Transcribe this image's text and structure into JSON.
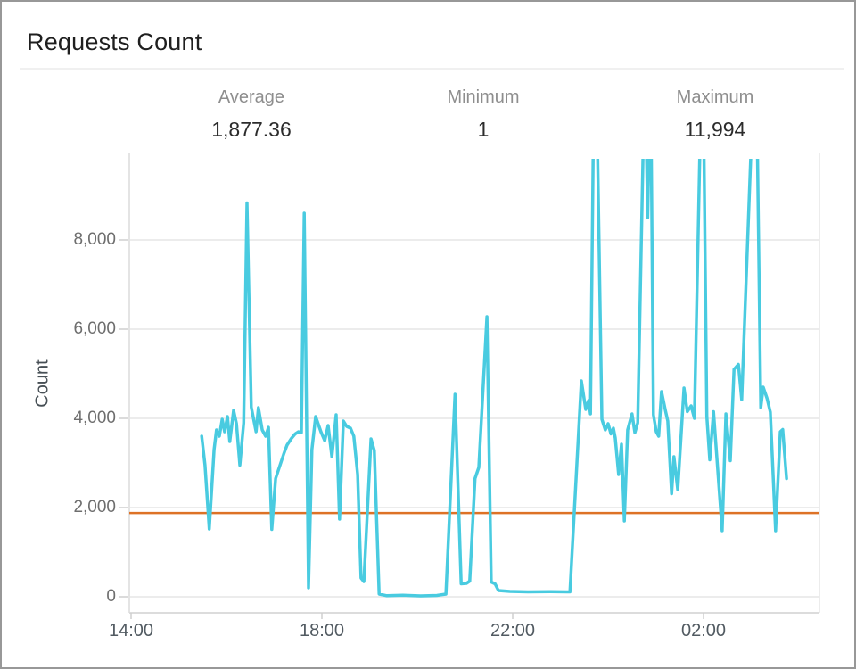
{
  "widget": {
    "title": "Requests Count"
  },
  "stats": [
    {
      "label": "Average",
      "value": "1,877.36"
    },
    {
      "label": "Minimum",
      "value": "1"
    },
    {
      "label": "Maximum",
      "value": "11,994"
    }
  ],
  "chart_data": {
    "type": "line",
    "title": "Requests Count",
    "xlabel": "",
    "ylabel": "Count",
    "x_unit": "hours after 14:00",
    "x_range": [
      0,
      14.4
    ],
    "ylim": [
      0,
      9900
    ],
    "grid": true,
    "legend": "none",
    "x_ticks": [
      {
        "t": 0,
        "label": "14:00"
      },
      {
        "t": 4,
        "label": "18:00"
      },
      {
        "t": 8,
        "label": "22:00"
      },
      {
        "t": 12,
        "label": "02:00"
      }
    ],
    "y_ticks": [
      {
        "v": 0,
        "label": "0"
      },
      {
        "v": 2000,
        "label": "2,000"
      },
      {
        "v": 4000,
        "label": "4,000"
      },
      {
        "v": 6000,
        "label": "6,000"
      },
      {
        "v": 8000,
        "label": "8,000"
      }
    ],
    "average_line_value": 1877.36,
    "colors": {
      "series": "#49cbe0",
      "average_line": "#dd7226",
      "grid": "#ececec",
      "axis": "#dcdcdc",
      "tick": "#cfcfcf"
    },
    "series": [
      {
        "name": "Requests Count",
        "points": [
          [
            1.48,
            3600
          ],
          [
            1.55,
            2950
          ],
          [
            1.64,
            1520
          ],
          [
            1.74,
            3300
          ],
          [
            1.79,
            3740
          ],
          [
            1.85,
            3600
          ],
          [
            1.91,
            3980
          ],
          [
            1.96,
            3700
          ],
          [
            2.02,
            4040
          ],
          [
            2.07,
            3480
          ],
          [
            2.15,
            4180
          ],
          [
            2.21,
            3880
          ],
          [
            2.28,
            2950
          ],
          [
            2.36,
            3900
          ],
          [
            2.43,
            8830
          ],
          [
            2.52,
            4250
          ],
          [
            2.62,
            3700
          ],
          [
            2.67,
            4240
          ],
          [
            2.75,
            3740
          ],
          [
            2.82,
            3600
          ],
          [
            2.88,
            3800
          ],
          [
            2.95,
            1510
          ],
          [
            3.03,
            2650
          ],
          [
            3.1,
            2880
          ],
          [
            3.2,
            3200
          ],
          [
            3.27,
            3400
          ],
          [
            3.36,
            3550
          ],
          [
            3.44,
            3650
          ],
          [
            3.51,
            3700
          ],
          [
            3.57,
            3680
          ],
          [
            3.63,
            8600
          ],
          [
            3.72,
            200
          ],
          [
            3.79,
            3300
          ],
          [
            3.87,
            4040
          ],
          [
            3.98,
            3700
          ],
          [
            4.06,
            3500
          ],
          [
            4.13,
            3840
          ],
          [
            4.21,
            3140
          ],
          [
            4.3,
            4080
          ],
          [
            4.37,
            1740
          ],
          [
            4.45,
            3940
          ],
          [
            4.52,
            3820
          ],
          [
            4.6,
            3780
          ],
          [
            4.67,
            3600
          ],
          [
            4.75,
            2740
          ],
          [
            4.82,
            420
          ],
          [
            4.88,
            340
          ],
          [
            5.03,
            3540
          ],
          [
            5.1,
            3280
          ],
          [
            5.2,
            60
          ],
          [
            5.36,
            25
          ],
          [
            5.7,
            35
          ],
          [
            6.07,
            20
          ],
          [
            6.41,
            30
          ],
          [
            6.6,
            60
          ],
          [
            6.79,
            4540
          ],
          [
            6.92,
            290
          ],
          [
            7.03,
            300
          ],
          [
            7.1,
            350
          ],
          [
            7.21,
            2650
          ],
          [
            7.29,
            2900
          ],
          [
            7.46,
            6280
          ],
          [
            7.55,
            330
          ],
          [
            7.63,
            290
          ],
          [
            7.7,
            140
          ],
          [
            7.94,
            120
          ],
          [
            8.32,
            110
          ],
          [
            8.79,
            115
          ],
          [
            9.2,
            110
          ],
          [
            9.44,
            4840
          ],
          [
            9.53,
            4200
          ],
          [
            9.59,
            4400
          ],
          [
            9.63,
            4100
          ],
          [
            9.7,
            11200
          ],
          [
            9.76,
            11200
          ],
          [
            9.87,
            3980
          ],
          [
            9.94,
            3740
          ],
          [
            10.0,
            3880
          ],
          [
            10.06,
            3650
          ],
          [
            10.11,
            3780
          ],
          [
            10.15,
            3560
          ],
          [
            10.22,
            2740
          ],
          [
            10.28,
            3420
          ],
          [
            10.34,
            1700
          ],
          [
            10.41,
            3740
          ],
          [
            10.5,
            4100
          ],
          [
            10.56,
            3680
          ],
          [
            10.62,
            3900
          ],
          [
            10.77,
            11994
          ],
          [
            10.83,
            8500
          ],
          [
            10.89,
            11994
          ],
          [
            10.95,
            4080
          ],
          [
            11.01,
            3700
          ],
          [
            11.06,
            3600
          ],
          [
            11.12,
            4600
          ],
          [
            11.2,
            4180
          ],
          [
            11.25,
            3940
          ],
          [
            11.33,
            2310
          ],
          [
            11.38,
            3140
          ],
          [
            11.46,
            2400
          ],
          [
            11.59,
            4680
          ],
          [
            11.66,
            4150
          ],
          [
            11.74,
            4280
          ],
          [
            11.81,
            4000
          ],
          [
            11.94,
            10900
          ],
          [
            12.0,
            10900
          ],
          [
            12.07,
            4040
          ],
          [
            12.13,
            3070
          ],
          [
            12.21,
            4150
          ],
          [
            12.39,
            1480
          ],
          [
            12.47,
            4100
          ],
          [
            12.56,
            3050
          ],
          [
            12.64,
            5100
          ],
          [
            12.73,
            5210
          ],
          [
            12.8,
            4420
          ],
          [
            13.05,
            11600
          ],
          [
            13.11,
            11600
          ],
          [
            13.2,
            4240
          ],
          [
            13.25,
            4700
          ],
          [
            13.33,
            4450
          ],
          [
            13.4,
            4140
          ],
          [
            13.51,
            1480
          ],
          [
            13.61,
            3700
          ],
          [
            13.66,
            3750
          ],
          [
            13.74,
            2650
          ]
        ]
      }
    ]
  }
}
